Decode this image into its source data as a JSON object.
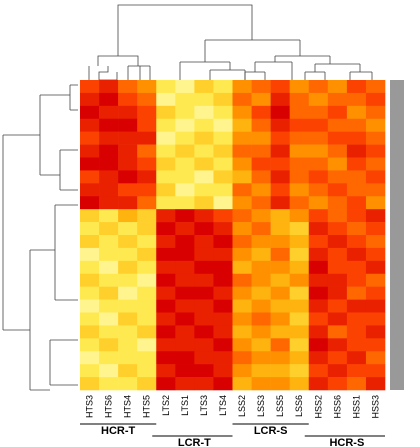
{
  "chart_data": {
    "type": "heatmap",
    "columns": [
      "HTS3",
      "HTS6",
      "HTS4",
      "HTS5",
      "LTS2",
      "LTS1",
      "LTS3",
      "LTS4",
      "LSS2",
      "LSS3",
      "LSS5",
      "LSS6",
      "HSS2",
      "HSS6",
      "HSS1",
      "HSS3"
    ],
    "column_groups": [
      "HCR-T",
      "LCR-T",
      "LCR-S",
      "HCR-S"
    ],
    "zlim": [
      0,
      9
    ],
    "colormap": [
      "#ffffcc",
      "#ffe640",
      "#ffa500",
      "#ff4a00",
      "#d80000"
    ],
    "matrix": [
      [
        7,
        8,
        6,
        5,
        2,
        1,
        3,
        2,
        5,
        6,
        7,
        5,
        6,
        5,
        7,
        6
      ],
      [
        8,
        9,
        7,
        6,
        1,
        2,
        2,
        3,
        6,
        5,
        8,
        6,
        5,
        6,
        6,
        7
      ],
      [
        9,
        8,
        8,
        7,
        3,
        2,
        1,
        2,
        5,
        7,
        9,
        6,
        6,
        7,
        5,
        6
      ],
      [
        8,
        9,
        9,
        7,
        2,
        1,
        2,
        1,
        4,
        6,
        8,
        7,
        7,
        6,
        6,
        5
      ],
      [
        7,
        8,
        8,
        8,
        1,
        2,
        3,
        2,
        5,
        5,
        7,
        6,
        6,
        7,
        7,
        6
      ],
      [
        8,
        9,
        8,
        6,
        2,
        3,
        2,
        3,
        6,
        6,
        8,
        5,
        5,
        6,
        8,
        7
      ],
      [
        9,
        9,
        8,
        7,
        3,
        2,
        3,
        2,
        5,
        7,
        7,
        6,
        6,
        5,
        7,
        6
      ],
      [
        7,
        8,
        9,
        8,
        2,
        2,
        1,
        3,
        4,
        6,
        8,
        6,
        7,
        6,
        6,
        7
      ],
      [
        8,
        8,
        7,
        7,
        3,
        1,
        2,
        2,
        6,
        5,
        7,
        5,
        6,
        7,
        6,
        6
      ],
      [
        9,
        8,
        8,
        6,
        2,
        2,
        3,
        1,
        5,
        6,
        8,
        6,
        5,
        6,
        7,
        5
      ],
      [
        3,
        2,
        4,
        3,
        8,
        9,
        8,
        7,
        6,
        5,
        4,
        5,
        7,
        6,
        7,
        8
      ],
      [
        2,
        3,
        2,
        3,
        9,
        8,
        9,
        8,
        5,
        6,
        4,
        3,
        8,
        7,
        6,
        7
      ],
      [
        3,
        2,
        3,
        2,
        8,
        9,
        8,
        9,
        6,
        5,
        5,
        4,
        7,
        8,
        7,
        6
      ],
      [
        1,
        2,
        2,
        3,
        9,
        9,
        8,
        8,
        5,
        4,
        6,
        3,
        8,
        7,
        8,
        7
      ],
      [
        2,
        1,
        3,
        2,
        8,
        8,
        9,
        9,
        4,
        5,
        5,
        4,
        9,
        7,
        7,
        8
      ],
      [
        3,
        2,
        2,
        1,
        9,
        8,
        8,
        9,
        6,
        5,
        4,
        5,
        8,
        8,
        7,
        6
      ],
      [
        2,
        3,
        1,
        2,
        8,
        9,
        9,
        8,
        5,
        4,
        5,
        3,
        9,
        8,
        6,
        7
      ],
      [
        1,
        2,
        2,
        2,
        9,
        8,
        8,
        9,
        4,
        5,
        4,
        4,
        8,
        7,
        8,
        8
      ],
      [
        2,
        1,
        3,
        2,
        8,
        9,
        8,
        8,
        5,
        6,
        5,
        3,
        7,
        8,
        7,
        7
      ],
      [
        3,
        2,
        2,
        3,
        9,
        8,
        9,
        8,
        4,
        5,
        4,
        4,
        8,
        6,
        7,
        8
      ],
      [
        2,
        3,
        2,
        1,
        8,
        8,
        8,
        9,
        5,
        4,
        6,
        3,
        9,
        8,
        7,
        7
      ],
      [
        1,
        2,
        2,
        2,
        9,
        9,
        8,
        8,
        6,
        5,
        5,
        4,
        8,
        7,
        8,
        6
      ],
      [
        2,
        1,
        3,
        2,
        8,
        9,
        9,
        8,
        5,
        4,
        4,
        3,
        7,
        8,
        7,
        7
      ],
      [
        3,
        2,
        2,
        3,
        9,
        8,
        8,
        9,
        4,
        5,
        5,
        4,
        8,
        7,
        6,
        8
      ]
    ]
  }
}
